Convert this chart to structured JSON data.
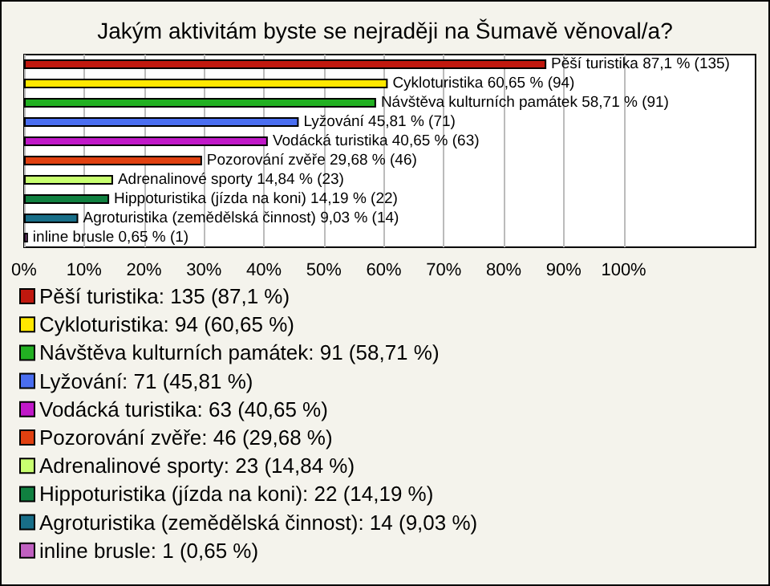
{
  "chart_data": {
    "type": "bar",
    "orientation": "horizontal",
    "title": "Jakým aktivitám byste se nejraději na Šumavě věnoval/a?",
    "categories": [
      null,
      null,
      null,
      null,
      null,
      null,
      null,
      null,
      null,
      null
    ],
    "series": [
      {
        "name": "Pěší turistika: 135 (87,1 %)",
        "color": "#c0180e",
        "values": [
          87.1,
          null,
          null,
          null,
          null,
          null,
          null,
          null,
          null,
          null
        ],
        "value_labels": [
          "Pěší turistika 87,1 % (135)",
          null,
          null,
          null,
          null,
          null,
          null,
          null,
          null,
          null
        ]
      },
      {
        "name": "Cykloturistika: 94 (60,65 %)",
        "color": "#ffe800",
        "values": [
          null,
          60.65,
          null,
          null,
          null,
          null,
          null,
          null,
          null,
          null
        ],
        "value_labels": [
          null,
          "Cykloturistika 60,65 % (94)",
          null,
          null,
          null,
          null,
          null,
          null,
          null,
          null
        ]
      },
      {
        "name": "Návštěva kulturních památek: 91 (58,71 %)",
        "color": "#22b022",
        "values": [
          null,
          null,
          58.71,
          null,
          null,
          null,
          null,
          null,
          null,
          null
        ],
        "value_labels": [
          null,
          null,
          "Návštěva kulturních památek 58,71 % (91)",
          null,
          null,
          null,
          null,
          null,
          null,
          null
        ]
      },
      {
        "name": "Lyžování: 71 (45,81 %)",
        "color": "#4a6ef0",
        "values": [
          null,
          null,
          null,
          45.81,
          null,
          null,
          null,
          null,
          null,
          null
        ],
        "value_labels": [
          null,
          null,
          null,
          "Lyžování 45,81 % (71)",
          null,
          null,
          null,
          null,
          null,
          null
        ]
      },
      {
        "name": "Vodácká turistika: 63 (40,65 %)",
        "color": "#c018c8",
        "values": [
          null,
          null,
          null,
          null,
          40.65,
          null,
          null,
          null,
          null,
          null
        ],
        "value_labels": [
          null,
          null,
          null,
          null,
          "Vodácká turistika 40,65 % (63)",
          null,
          null,
          null,
          null,
          null
        ]
      },
      {
        "name": "Pozorování zvěře: 46 (29,68 %)",
        "color": "#e04010",
        "values": [
          null,
          null,
          null,
          null,
          null,
          29.68,
          null,
          null,
          null,
          null
        ],
        "value_labels": [
          null,
          null,
          null,
          null,
          null,
          "Pozorování zvěře 29,68 % (46)",
          null,
          null,
          null,
          null
        ]
      },
      {
        "name": "Adrenalinové sporty: 23 (14,84 %)",
        "color": "#c8ff70",
        "values": [
          null,
          null,
          null,
          null,
          null,
          null,
          14.84,
          null,
          null,
          null
        ],
        "value_labels": [
          null,
          null,
          null,
          null,
          null,
          null,
          "Adrenalinové sporty 14,84 % (23)",
          null,
          null,
          null
        ]
      },
      {
        "name": "Hippoturistika (jízda na koni): 22 (14,19 %)",
        "color": "#108040",
        "values": [
          null,
          null,
          null,
          null,
          null,
          null,
          null,
          14.19,
          null,
          null
        ],
        "value_labels": [
          null,
          null,
          null,
          null,
          null,
          null,
          null,
          "Hippoturistika (jízda na koni) 14,19 % (22)",
          null,
          null
        ]
      },
      {
        "name": "Agroturistika (zemědělská činnost): 14 (9,03 %)",
        "color": "#186e88",
        "values": [
          null,
          null,
          null,
          null,
          null,
          null,
          null,
          null,
          9.03,
          null
        ],
        "value_labels": [
          null,
          null,
          null,
          null,
          null,
          null,
          null,
          null,
          "Agroturistika (zemědělská činnost) 9,03 % (14)",
          null
        ]
      },
      {
        "name": "inline brusle: 1 (0,65 %)",
        "color": "#c060c0",
        "values": [
          null,
          null,
          null,
          null,
          null,
          null,
          null,
          null,
          null,
          0.65
        ],
        "value_labels": [
          null,
          null,
          null,
          null,
          null,
          null,
          null,
          null,
          null,
          "inline brusle 0,65 % (1)"
        ]
      }
    ],
    "xlim": [
      0,
      122
    ],
    "xticks": [
      {
        "value": 0,
        "label": "0%"
      },
      {
        "value": 10,
        "label": "10%"
      },
      {
        "value": 20,
        "label": "20%"
      },
      {
        "value": 30,
        "label": "30%"
      },
      {
        "value": 40,
        "label": "40%"
      },
      {
        "value": 50,
        "label": "50%"
      },
      {
        "value": 60,
        "label": "60%"
      },
      {
        "value": 70,
        "label": "70%"
      },
      {
        "value": 80,
        "label": "80%"
      },
      {
        "value": 90,
        "label": "90%"
      },
      {
        "value": 100,
        "label": "100%"
      }
    ],
    "grid": "x",
    "legend": "bottom"
  }
}
